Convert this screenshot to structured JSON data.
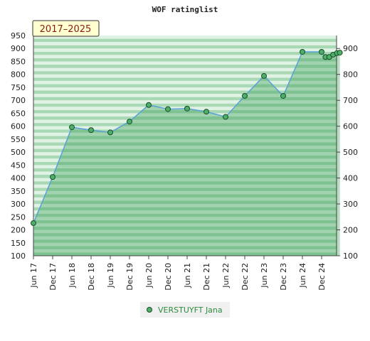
{
  "chart_data": {
    "type": "area",
    "title": "WOF ratinglist",
    "badge": "2017–2025",
    "xlabel": "",
    "ylabel": "",
    "ylim": [
      100,
      950
    ],
    "y_ticks_left": [
      100,
      150,
      200,
      250,
      300,
      350,
      400,
      450,
      500,
      550,
      600,
      650,
      700,
      750,
      800,
      850,
      900,
      950
    ],
    "y_ticks_right": [
      100,
      200,
      300,
      400,
      500,
      600,
      700,
      800,
      900
    ],
    "x_ticks": [
      "Jun 17",
      "Dec 17",
      "Jun 18",
      "Dec 18",
      "Jun 19",
      "Dec 19",
      "Jun 20",
      "Dec 20",
      "Jun 21",
      "Dec 21",
      "Jun 22",
      "Dec 22",
      "Jun 23",
      "Dec 23",
      "Jun 24",
      "Dec 24"
    ],
    "series": [
      {
        "name": "VERSTUYFT Jana",
        "points": [
          {
            "x": 0.0,
            "y": 226
          },
          {
            "x": 1.0,
            "y": 404
          },
          {
            "x": 2.0,
            "y": 596
          },
          {
            "x": 3.0,
            "y": 585
          },
          {
            "x": 4.0,
            "y": 576
          },
          {
            "x": 5.0,
            "y": 618
          },
          {
            "x": 6.0,
            "y": 682
          },
          {
            "x": 7.0,
            "y": 666
          },
          {
            "x": 8.0,
            "y": 668
          },
          {
            "x": 9.0,
            "y": 656
          },
          {
            "x": 10.0,
            "y": 636
          },
          {
            "x": 11.0,
            "y": 717
          },
          {
            "x": 12.0,
            "y": 794
          },
          {
            "x": 13.0,
            "y": 717
          },
          {
            "x": 14.0,
            "y": 887
          },
          {
            "x": 15.0,
            "y": 887
          },
          {
            "x": 15.2,
            "y": 867
          },
          {
            "x": 15.4,
            "y": 867
          },
          {
            "x": 15.6,
            "y": 876
          },
          {
            "x": 15.8,
            "y": 882
          },
          {
            "x": 15.95,
            "y": 884
          }
        ]
      }
    ],
    "grid": true,
    "legend_position": "bottom-center",
    "colors": {
      "band_dark": "#a8d8b4",
      "band_light": "#dff2e4",
      "fill": "#2f9c4e",
      "line": "#5aa0d8",
      "marker": "#4caf6a"
    }
  }
}
